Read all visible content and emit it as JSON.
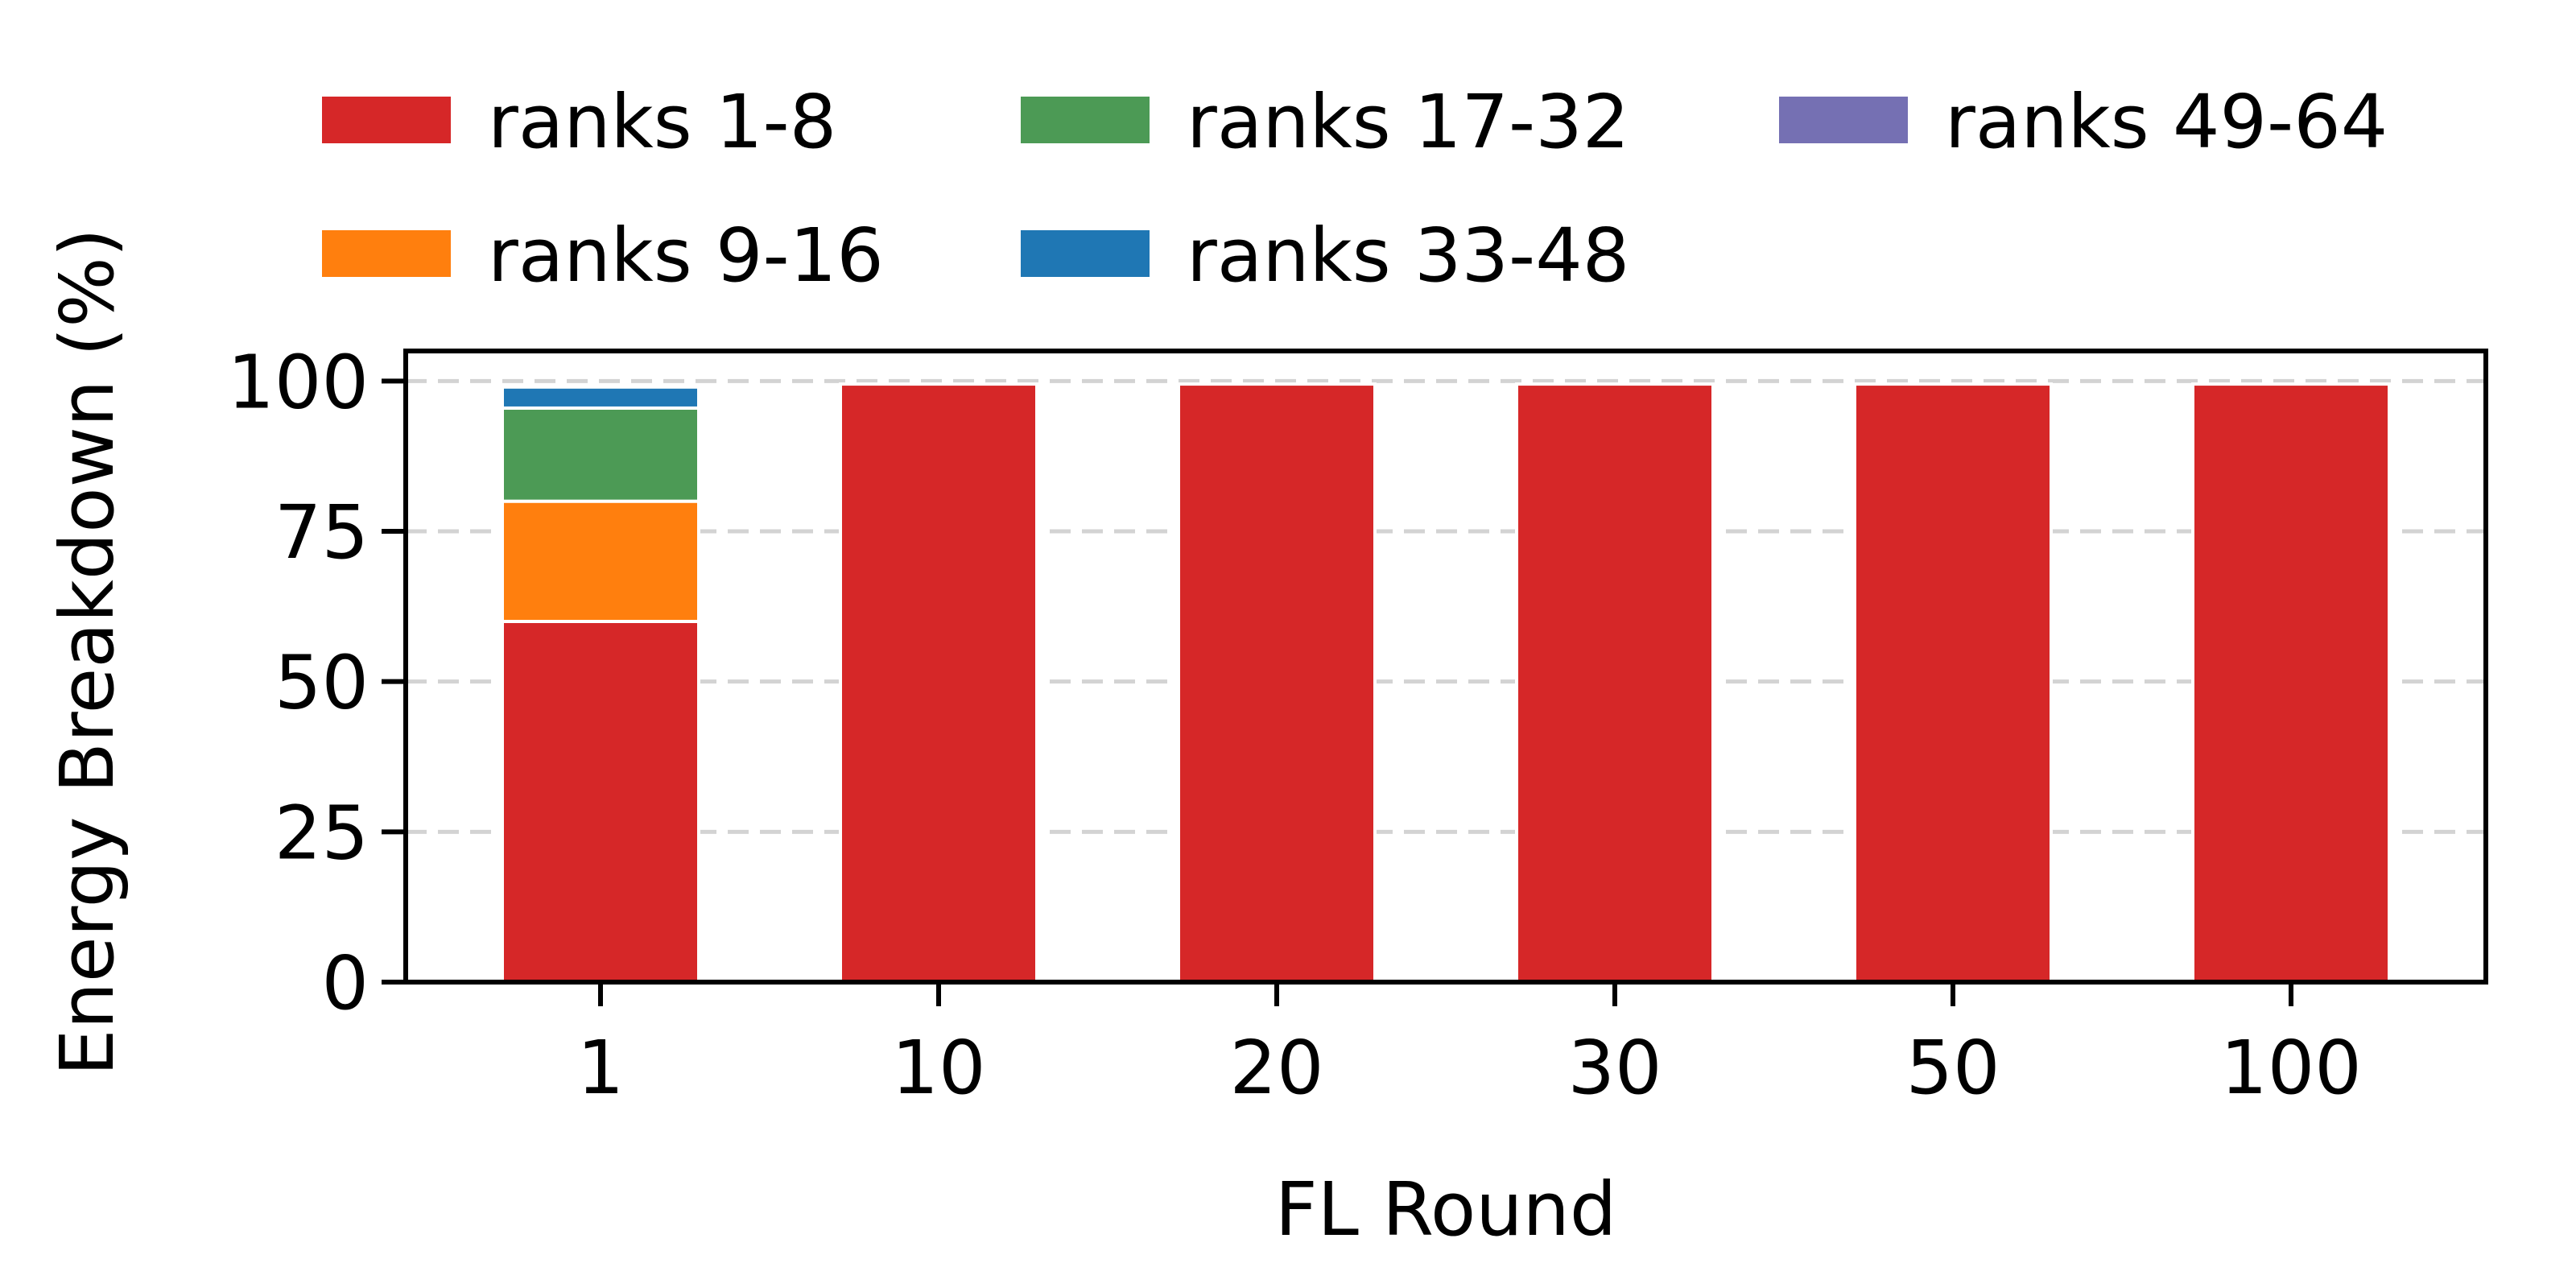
{
  "chart_data": {
    "type": "bar",
    "stacked": true,
    "xlabel": "FL Round",
    "ylabel": "Energy Breakdown (%)",
    "categories": [
      "1",
      "10",
      "20",
      "30",
      "50",
      "100"
    ],
    "ylim": [
      0,
      105
    ],
    "yticks": [
      0,
      25,
      50,
      75,
      100
    ],
    "grid": "horizontal-dashed",
    "legend_position": "top",
    "series": [
      {
        "name": "ranks 1-8",
        "color": "#d62728",
        "values": [
          60,
          99.5,
          99.5,
          99.5,
          99.5,
          99.5
        ]
      },
      {
        "name": "ranks 9-16",
        "color": "#ff7f0e",
        "values": [
          20,
          0,
          0,
          0,
          0,
          0
        ]
      },
      {
        "name": "ranks 17-32",
        "color": "#4c9a55",
        "values": [
          15.5,
          0,
          0,
          0,
          0,
          0
        ]
      },
      {
        "name": "ranks 33-48",
        "color": "#1f77b4",
        "values": [
          3.5,
          0,
          0,
          0,
          0,
          0
        ]
      },
      {
        "name": "ranks 49-64",
        "color": "#7570b3",
        "values": [
          0,
          0,
          0,
          0,
          0,
          0
        ]
      }
    ]
  }
}
